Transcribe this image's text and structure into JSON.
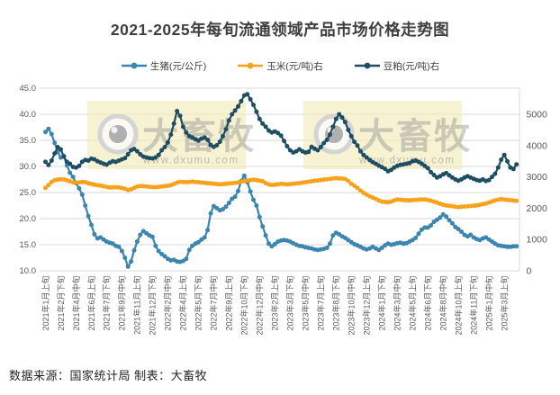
{
  "title": "2021-2025年每旬流通领域产品市场价格走势图",
  "source_note": "数据来源：国家统计局 制表：大畜牧",
  "watermark": {
    "brand": "大畜牧",
    "url": "www.dxumu.com"
  },
  "colors": {
    "pig": "#3C85AE",
    "corn": "#F7A21B",
    "soymeal": "#1F4E63",
    "gridline": "#D9D9D9",
    "axis_text": "#595959",
    "title_text": "#3F3F3F",
    "watermark_bg": "#F0EAB4"
  },
  "legend": {
    "items": [
      {
        "id": "pig",
        "label": "生猪(元/公斤)",
        "color": "#3C85AE"
      },
      {
        "id": "corn",
        "label": "玉米(元/吨)右",
        "color": "#F7A21B"
      },
      {
        "id": "soymeal",
        "label": "豆粕(元/吨)右",
        "color": "#1F4E63"
      }
    ]
  },
  "chart_data": {
    "type": "line",
    "title": "2021-2025年每旬流通领域产品市场价格走势图",
    "x_description": "每旬(上/中/下旬)一个数据点，自2021年1月上旬起，共155旬",
    "n_points": 155,
    "x_tick_every": 5,
    "x_tick_labels": [
      "2021年1月上旬",
      "2021年2月下旬",
      "2021年4月中旬",
      "2021年6月上旬",
      "2021年7月下旬",
      "2021年9月中旬",
      "2021年11月上旬",
      "2021年12月下旬",
      "2022年2月中旬",
      "2022年4月上旬",
      "2022年5月下旬",
      "2022年7月中旬",
      "2022年9月上旬",
      "2022年10月下旬",
      "2022年12月中旬",
      "2023年2月上旬",
      "2023年3月下旬",
      "2023年5月中旬",
      "2023年7月上旬",
      "2023年8月下旬",
      "2023年10月中旬",
      "2023年12月上旬",
      "2024年1月下旬",
      "2024年3月中旬",
      "2024年5月上旬",
      "2024年6月下旬",
      "2024年8月中旬",
      "2024年10月上旬",
      "2024年11月下旬",
      "2025年1月中旬",
      "2025年3月上旬"
    ],
    "left_axis": {
      "min": 10,
      "max": 45,
      "step": 5,
      "tick_labels": [
        "45.0",
        "40.0",
        "35.0",
        "30.0",
        "25.0",
        "20.0",
        "15.0",
        "10.0"
      ]
    },
    "right_axis": {
      "min": 0,
      "max": 5000,
      "step": 1000,
      "tick_labels": [
        "5000",
        "4000",
        "3000",
        "2000",
        "1000",
        "0"
      ]
    },
    "grid": true,
    "legend_position": "top",
    "series": [
      {
        "id": "pig",
        "name": "生猪(元/公斤)",
        "axis": "left",
        "color": "#3C85AE",
        "values": [
          36.6,
          37.2,
          36.2,
          34.5,
          32.8,
          31.7,
          32.0,
          30.2,
          28.8,
          28.0,
          26.8,
          25.8,
          24.6,
          22.5,
          20.5,
          18.8,
          17.0,
          16.2,
          16.4,
          16.0,
          15.6,
          15.4,
          15.2,
          14.8,
          14.6,
          13.8,
          12.5,
          10.8,
          11.8,
          13.9,
          15.6,
          16.9,
          17.6,
          17.2,
          16.8,
          16.5,
          14.8,
          13.8,
          13.2,
          12.8,
          12.3,
          12.0,
          12.1,
          11.8,
          11.7,
          11.9,
          12.3,
          14.0,
          14.8,
          15.2,
          15.5,
          16.0,
          16.4,
          17.8,
          21.0,
          22.4,
          22.0,
          21.6,
          21.8,
          22.3,
          23.0,
          23.8,
          24.2,
          25.3,
          27.2,
          28.2,
          27.0,
          25.2,
          23.6,
          22.5,
          20.3,
          18.5,
          16.8,
          15.2,
          14.7,
          15.1,
          15.6,
          15.8,
          15.9,
          15.8,
          15.6,
          15.3,
          15.0,
          14.8,
          14.7,
          14.5,
          14.4,
          14.3,
          14.1,
          14.0,
          14.1,
          14.2,
          14.4,
          15.2,
          16.8,
          17.3,
          17.0,
          16.6,
          16.3,
          15.9,
          15.5,
          15.1,
          14.9,
          14.6,
          14.3,
          14.1,
          14.3,
          14.6,
          14.3,
          14.0,
          14.4,
          14.9,
          15.2,
          15.0,
          15.1,
          15.3,
          15.4,
          15.2,
          15.3,
          15.6,
          15.9,
          16.3,
          17.1,
          17.9,
          18.3,
          18.3,
          18.7,
          19.4,
          19.8,
          20.2,
          20.8,
          20.4,
          19.7,
          19.1,
          18.4,
          18.0,
          17.5,
          16.9,
          16.6,
          16.9,
          16.4,
          16.1,
          15.9,
          16.2,
          16.4,
          16.0,
          15.6,
          15.2,
          14.9,
          14.8,
          14.7,
          14.6,
          14.6,
          14.7,
          14.7
        ]
      },
      {
        "id": "corn",
        "name": "玉米(元/吨)右",
        "axis": "right",
        "color": "#F7A21B",
        "values": [
          2650,
          2740,
          2840,
          2890,
          2915,
          2925,
          2920,
          2890,
          2860,
          2830,
          2820,
          2825,
          2840,
          2830,
          2800,
          2775,
          2750,
          2735,
          2720,
          2700,
          2680,
          2660,
          2665,
          2670,
          2665,
          2645,
          2620,
          2580,
          2600,
          2650,
          2690,
          2710,
          2700,
          2695,
          2685,
          2675,
          2670,
          2680,
          2695,
          2705,
          2715,
          2735,
          2775,
          2815,
          2845,
          2840,
          2830,
          2840,
          2848,
          2840,
          2830,
          2820,
          2810,
          2800,
          2790,
          2782,
          2772,
          2762,
          2770,
          2778,
          2788,
          2798,
          2808,
          2825,
          2845,
          2865,
          2885,
          2898,
          2908,
          2898,
          2880,
          2858,
          2800,
          2760,
          2740,
          2750,
          2765,
          2775,
          2770,
          2760,
          2770,
          2780,
          2790,
          2800,
          2815,
          2830,
          2845,
          2860,
          2875,
          2885,
          2900,
          2915,
          2925,
          2935,
          2950,
          2960,
          2955,
          2945,
          2930,
          2870,
          2780,
          2715,
          2650,
          2560,
          2490,
          2430,
          2380,
          2340,
          2300,
          2250,
          2210,
          2200,
          2190,
          2210,
          2250,
          2280,
          2270,
          2260,
          2255,
          2250,
          2258,
          2265,
          2272,
          2280,
          2275,
          2265,
          2240,
          2210,
          2180,
          2140,
          2110,
          2090,
          2075,
          2065,
          2050,
          2035,
          2045,
          2055,
          2060,
          2070,
          2080,
          2090,
          2110,
          2130,
          2150,
          2180,
          2215,
          2250,
          2270,
          2290,
          2280,
          2265,
          2255,
          2245,
          2235
        ]
      },
      {
        "id": "soymeal",
        "name": "豆粕(元/吨)右",
        "axis": "right",
        "color": "#1F4E63",
        "values": [
          3480,
          3380,
          3520,
          3750,
          3950,
          3880,
          3650,
          3480,
          3420,
          3320,
          3300,
          3350,
          3480,
          3540,
          3520,
          3580,
          3560,
          3500,
          3460,
          3420,
          3390,
          3450,
          3500,
          3480,
          3520,
          3560,
          3600,
          3720,
          3850,
          3890,
          3820,
          3720,
          3650,
          3620,
          3600,
          3590,
          3620,
          3700,
          3850,
          3950,
          4100,
          4350,
          4700,
          5100,
          4950,
          4600,
          4420,
          4300,
          4260,
          4200,
          4160,
          4220,
          4260,
          4180,
          4020,
          3960,
          4010,
          4120,
          4300,
          4520,
          4800,
          5000,
          5120,
          5250,
          5420,
          5600,
          5640,
          5480,
          5300,
          5080,
          4850,
          4700,
          4600,
          4480,
          4420,
          4450,
          4400,
          4320,
          4150,
          3980,
          3850,
          3780,
          3820,
          3880,
          3820,
          3780,
          3800,
          3960,
          3900,
          3850,
          3950,
          4080,
          4180,
          4350,
          4600,
          4850,
          5000,
          4900,
          4750,
          4500,
          4300,
          4120,
          4000,
          3820,
          3700,
          3620,
          3540,
          3470,
          3420,
          3360,
          3310,
          3260,
          3180,
          3220,
          3300,
          3350,
          3380,
          3400,
          3420,
          3440,
          3500,
          3520,
          3480,
          3420,
          3350,
          3280,
          3150,
          3060,
          2980,
          3020,
          3080,
          3120,
          3050,
          2980,
          2920,
          2880,
          2920,
          2980,
          3020,
          2980,
          2940,
          2900,
          2880,
          2920,
          2870,
          2900,
          3000,
          3100,
          3300,
          3550,
          3700,
          3500,
          3300,
          3250,
          3400
        ]
      }
    ]
  }
}
